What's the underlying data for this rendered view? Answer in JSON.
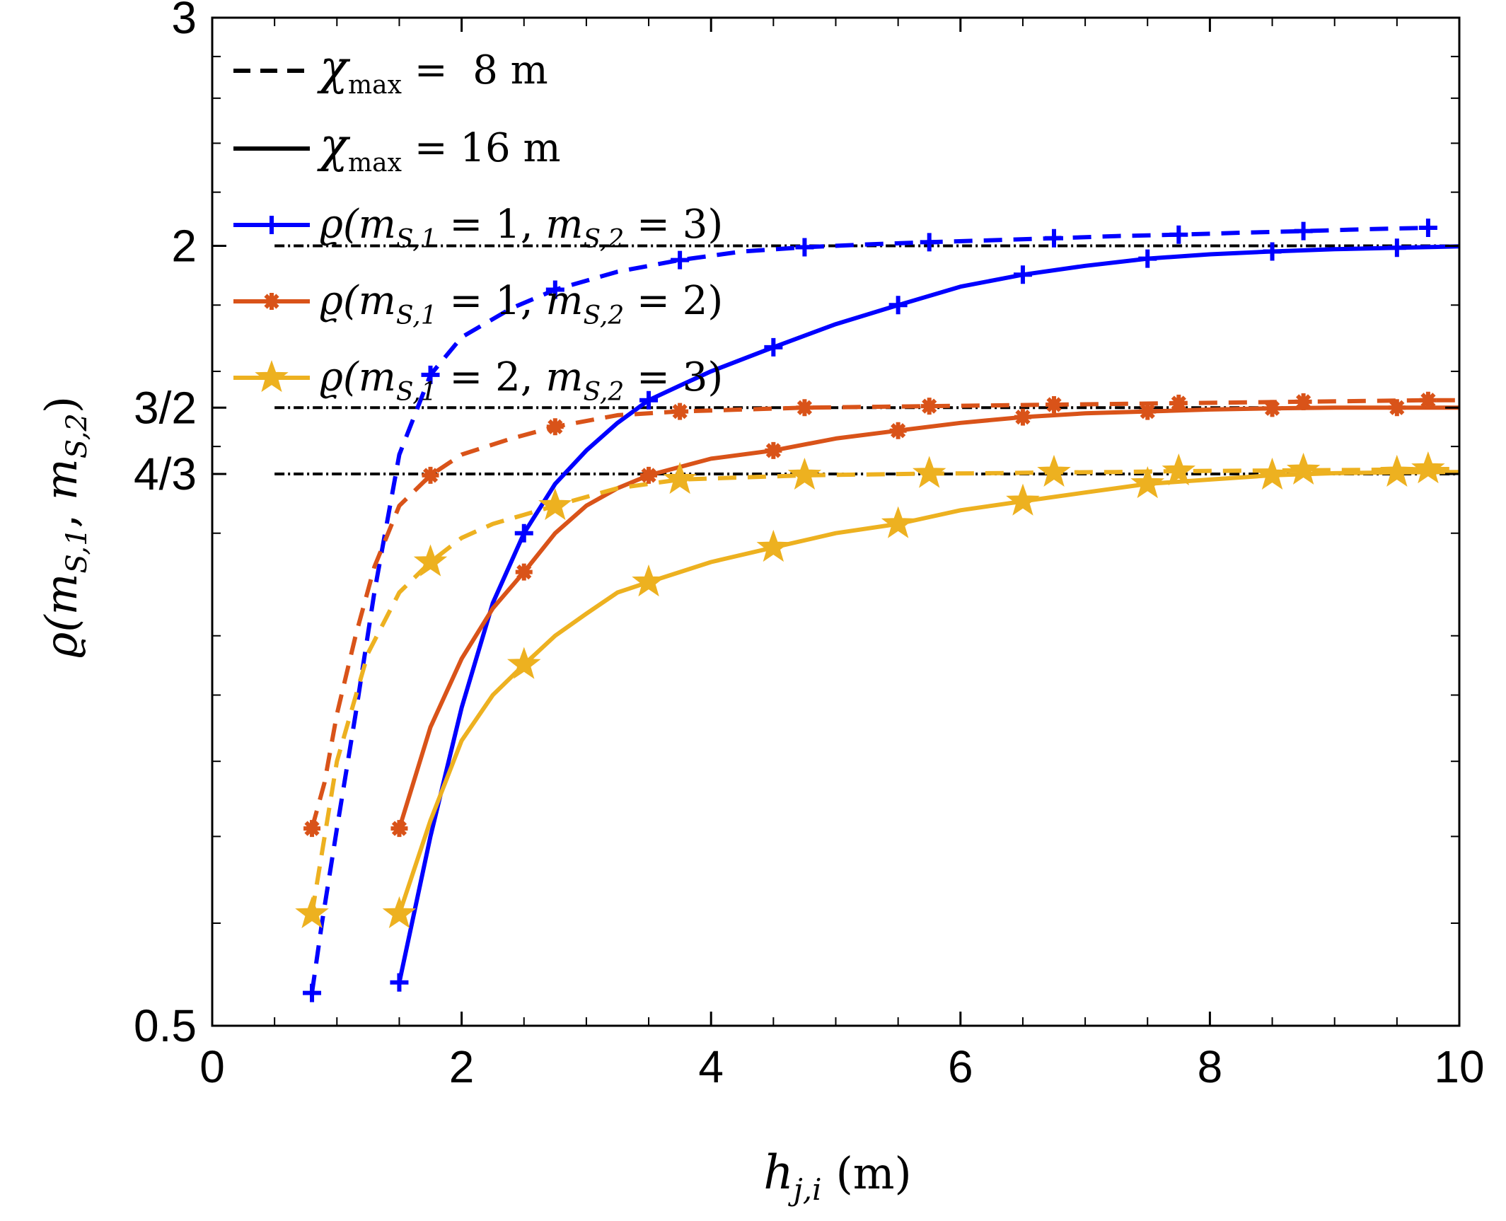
{
  "chart_data": {
    "type": "line",
    "xlabel": "h_{j,i} (m)",
    "xlabel_parts": {
      "var": "h",
      "sub": "j,i",
      "unit": "(m)"
    },
    "ylabel": "ϱ(m_{S,1}, m_{S,2})",
    "ylabel_parts": {
      "rho": "ϱ(",
      "m1": "m",
      "s1": "S,1",
      "comma": ", ",
      "m2": "m",
      "s2": "S,2",
      "close": ")"
    },
    "xlim": [
      0,
      10
    ],
    "ylim": [
      0.5,
      3
    ],
    "yscale": "log",
    "xticks": [
      0,
      2,
      4,
      6,
      8,
      10
    ],
    "xtick_labels": [
      "0",
      "2",
      "4",
      "6",
      "8",
      "10"
    ],
    "yticks": [
      0.5,
      1.3333,
      1.5,
      2,
      3
    ],
    "ytick_labels": [
      "0.5",
      "4/3",
      "3/2",
      "2",
      "3"
    ],
    "reference_lines": [
      {
        "y": 2.0,
        "x_range": [
          0.5,
          10
        ],
        "style": "dash-dot"
      },
      {
        "y": 1.5,
        "x_range": [
          0.5,
          10
        ],
        "style": "dash-dot"
      },
      {
        "y": 1.3333,
        "x_range": [
          0.5,
          10
        ],
        "style": "dash-dot"
      }
    ],
    "legend_position": "top-left",
    "legend": [
      {
        "label": "χmax = 8 m",
        "sym": "χ",
        "sub": "max",
        "rest": " =  8 m",
        "style": "dashed",
        "color": "#000000"
      },
      {
        "label": "χmax = 16 m",
        "sym": "χ",
        "sub": "max",
        "rest": " = 16 m",
        "style": "solid",
        "color": "#000000"
      },
      {
        "label": "ϱ(mS,1 = 1, mS,2 = 3)",
        "a": "1",
        "b": "3",
        "marker": "plus",
        "color": "#0000FF"
      },
      {
        "label": "ϱ(mS,1 = 1, mS,2 = 2)",
        "a": "1",
        "b": "2",
        "marker": "asterisk",
        "color": "#D95319"
      },
      {
        "label": "ϱ(mS,1 = 2, mS,2 = 3)",
        "a": "2",
        "b": "3",
        "marker": "star",
        "color": "#EDB120"
      }
    ],
    "series": [
      {
        "name": "ϱ(1,3) χmax=8",
        "color": "#0000FF",
        "dash": "dashed",
        "marker": "plus",
        "x": [
          0.8,
          0.88,
          1.0,
          1.15,
          1.3,
          1.5,
          1.75,
          2.0,
          2.4,
          2.75,
          3.25,
          3.75,
          4.25,
          4.75,
          5.25,
          5.75,
          6.25,
          6.75,
          7.25,
          7.75,
          8.25,
          8.75,
          9.25,
          9.75
        ],
        "y": [
          0.53,
          0.6,
          0.71,
          0.87,
          1.08,
          1.38,
          1.59,
          1.7,
          1.79,
          1.85,
          1.91,
          1.95,
          1.98,
          1.995,
          2.005,
          2.013,
          2.02,
          2.027,
          2.035,
          2.04,
          2.047,
          2.053,
          2.06,
          2.065
        ],
        "marker_x": [
          0.8,
          1.75,
          2.75,
          3.75,
          4.75,
          5.75,
          6.75,
          7.75,
          8.75,
          9.75
        ],
        "marker_y": [
          0.53,
          1.59,
          1.85,
          1.95,
          1.995,
          2.013,
          2.027,
          2.04,
          2.053,
          2.065
        ]
      },
      {
        "name": "ϱ(1,3) χmax=16",
        "color": "#0000FF",
        "dash": "solid",
        "marker": "plus",
        "x": [
          1.5,
          1.75,
          2.0,
          2.25,
          2.5,
          2.75,
          3.0,
          3.25,
          3.5,
          3.75,
          4.0,
          4.5,
          5.0,
          5.5,
          6.0,
          6.5,
          7.0,
          7.5,
          8.0,
          8.5,
          9.0,
          9.5,
          10.0
        ],
        "y": [
          0.54,
          0.7,
          0.88,
          1.06,
          1.2,
          1.31,
          1.39,
          1.46,
          1.52,
          1.56,
          1.6,
          1.67,
          1.74,
          1.8,
          1.86,
          1.9,
          1.93,
          1.955,
          1.97,
          1.98,
          1.988,
          1.993,
          1.998
        ],
        "marker_x": [
          1.5,
          2.5,
          3.5,
          4.5,
          5.5,
          6.5,
          7.5,
          8.5,
          9.5
        ],
        "marker_y": [
          0.54,
          1.2,
          1.52,
          1.67,
          1.8,
          1.9,
          1.955,
          1.98,
          1.993
        ]
      },
      {
        "name": "ϱ(1,2) χmax=8",
        "color": "#D95319",
        "dash": "dashed",
        "marker": "asterisk",
        "x": [
          0.8,
          0.9,
          1.0,
          1.15,
          1.3,
          1.5,
          1.75,
          2.0,
          2.4,
          2.75,
          3.25,
          3.75,
          4.25,
          4.75,
          5.25,
          5.75,
          6.25,
          6.75,
          7.25,
          7.75,
          8.25,
          8.75,
          9.25,
          9.75,
          10.0
        ],
        "y": [
          0.71,
          0.77,
          0.87,
          1.0,
          1.13,
          1.26,
          1.33,
          1.38,
          1.42,
          1.45,
          1.48,
          1.49,
          1.495,
          1.5,
          1.502,
          1.504,
          1.506,
          1.508,
          1.51,
          1.512,
          1.514,
          1.516,
          1.518,
          1.52,
          1.52
        ],
        "marker_x": [
          0.8,
          1.75,
          2.75,
          3.75,
          4.75,
          5.75,
          6.75,
          7.75,
          8.75,
          9.75
        ],
        "marker_y": [
          0.71,
          1.33,
          1.45,
          1.49,
          1.5,
          1.504,
          1.508,
          1.512,
          1.516,
          1.52
        ]
      },
      {
        "name": "ϱ(1,2) χmax=16",
        "color": "#D95319",
        "dash": "solid",
        "marker": "asterisk",
        "x": [
          1.5,
          1.75,
          2.0,
          2.25,
          2.5,
          2.75,
          3.0,
          3.25,
          3.5,
          3.75,
          4.0,
          4.5,
          5.0,
          5.5,
          6.0,
          6.5,
          7.0,
          7.5,
          8.0,
          8.5,
          9.0,
          9.5,
          10.0
        ],
        "y": [
          0.71,
          0.85,
          0.96,
          1.05,
          1.12,
          1.2,
          1.26,
          1.3,
          1.33,
          1.35,
          1.37,
          1.39,
          1.42,
          1.44,
          1.46,
          1.475,
          1.485,
          1.49,
          1.495,
          1.498,
          1.5,
          1.5,
          1.5
        ],
        "marker_x": [
          1.5,
          2.5,
          3.5,
          4.5,
          5.5,
          6.5,
          7.5,
          8.5,
          9.5
        ],
        "marker_y": [
          0.71,
          1.12,
          1.33,
          1.39,
          1.44,
          1.475,
          1.49,
          1.498,
          1.5
        ]
      },
      {
        "name": "ϱ(2,3) χmax=8",
        "color": "#EDB120",
        "dash": "dashed",
        "marker": "star",
        "x": [
          0.8,
          1.0,
          1.25,
          1.5,
          1.75,
          2.0,
          2.25,
          2.5,
          2.75,
          3.25,
          3.75,
          4.25,
          4.75,
          5.25,
          5.75,
          6.25,
          6.75,
          7.25,
          7.75,
          8.25,
          8.75,
          9.25,
          9.75,
          10.0
        ],
        "y": [
          0.61,
          0.8,
          0.97,
          1.08,
          1.14,
          1.19,
          1.22,
          1.24,
          1.26,
          1.3,
          1.32,
          1.325,
          1.33,
          1.332,
          1.334,
          1.335,
          1.337,
          1.338,
          1.34,
          1.341,
          1.342,
          1.343,
          1.345,
          1.345
        ],
        "marker_x": [
          0.8,
          1.75,
          2.75,
          3.75,
          4.75,
          5.75,
          6.75,
          7.75,
          8.75,
          9.75
        ],
        "marker_y": [
          0.61,
          1.14,
          1.26,
          1.32,
          1.33,
          1.334,
          1.337,
          1.34,
          1.342,
          1.345
        ]
      },
      {
        "name": "ϱ(2,3) χmax=16",
        "color": "#EDB120",
        "dash": "solid",
        "marker": "star",
        "x": [
          1.5,
          1.75,
          2.0,
          2.25,
          2.5,
          2.75,
          3.0,
          3.25,
          3.5,
          4.0,
          4.5,
          5.0,
          5.5,
          6.0,
          6.5,
          7.0,
          7.5,
          8.0,
          8.5,
          9.0,
          9.5,
          10.0
        ],
        "y": [
          0.61,
          0.72,
          0.83,
          0.9,
          0.95,
          1.0,
          1.04,
          1.08,
          1.1,
          1.14,
          1.17,
          1.2,
          1.22,
          1.25,
          1.27,
          1.29,
          1.31,
          1.32,
          1.33,
          1.335,
          1.337,
          1.338
        ],
        "marker_x": [
          1.5,
          2.5,
          3.5,
          4.5,
          5.5,
          6.5,
          7.5,
          8.5,
          9.5
        ],
        "marker_y": [
          0.61,
          0.95,
          1.1,
          1.17,
          1.22,
          1.27,
          1.31,
          1.33,
          1.337
        ]
      }
    ]
  }
}
